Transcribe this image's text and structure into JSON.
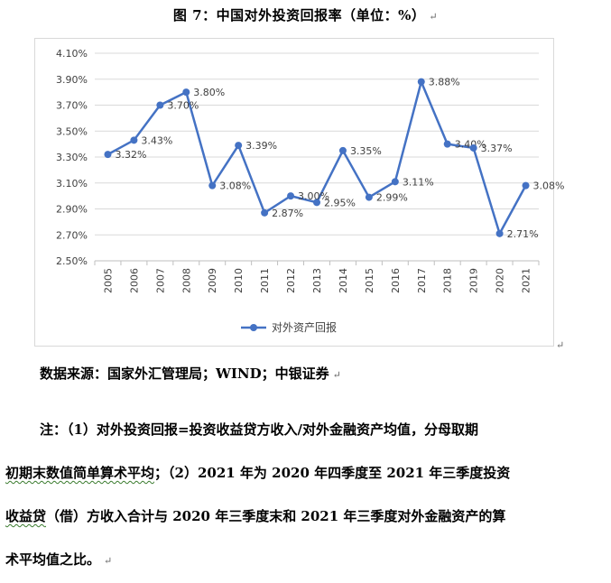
{
  "title": "图 7：中国对外投资回报率（单位：%）",
  "paragraph_mark": "↵",
  "source": "数据来源：国家外汇管理局；WIND；中银证券",
  "notes": {
    "line1": "注：（1）对外投资回报=投资收益贷方收入/对外金融资产均值，分母取期",
    "line2_wavy": "初期末数值简单算术平均",
    "line2_rest": "；（2）2021 年为 2020 年四季度至 2021 年三季度投资",
    "line3_wavy": "收益贷",
    "line3_rest": "（借）方收入合计与 2020 年三季度末和 2021 年三季度对外金融资产的算",
    "line4": "术平均值之比。"
  },
  "chart_data": {
    "type": "line",
    "title": "",
    "xlabel": "",
    "ylabel": "",
    "x": [
      "2005",
      "2006",
      "2007",
      "2008",
      "2009",
      "2010",
      "2011",
      "2012",
      "2013",
      "2014",
      "2015",
      "2016",
      "2017",
      "2018",
      "2019",
      "2020",
      "2021"
    ],
    "series": [
      {
        "name": "对外资产回报",
        "values": [
          3.32,
          3.43,
          3.7,
          3.8,
          3.08,
          3.39,
          2.87,
          3.0,
          2.95,
          3.35,
          2.99,
          3.11,
          3.88,
          3.4,
          3.37,
          2.71,
          3.08
        ],
        "labels": [
          "3.32%",
          "3.43%",
          "3.70%",
          "3.80%",
          "3.08%",
          "3.39%",
          "2.87%",
          "3.00%",
          "2.95%",
          "3.35%",
          "2.99%",
          "3.11%",
          "3.88%",
          "3.40%",
          "3.37%",
          "2.71%",
          "3.08%"
        ]
      }
    ],
    "ylim": [
      2.5,
      4.1
    ],
    "yticks": [
      "2.50%",
      "2.70%",
      "2.90%",
      "3.10%",
      "3.30%",
      "3.50%",
      "3.70%",
      "3.90%",
      "4.10%"
    ],
    "grid": true,
    "legend": "bottom",
    "line_color": "#4472c4",
    "grid_color": "#d9d9d9"
  }
}
